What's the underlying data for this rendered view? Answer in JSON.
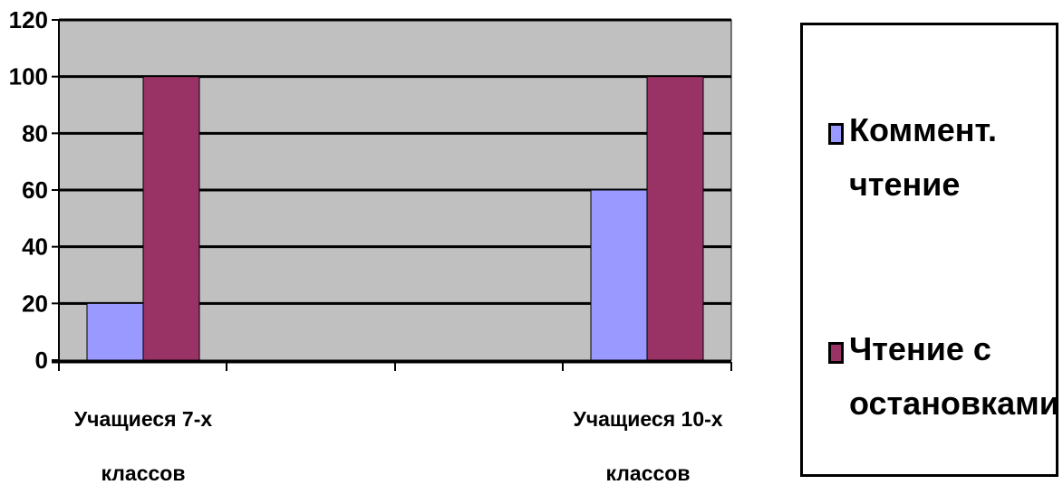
{
  "chart_data": {
    "type": "bar",
    "categories": [
      "Учащиеся 7-х\nклассов",
      "Учащиеся 10-х\nклассов"
    ],
    "series": [
      {
        "name": "Коммент.\nчтение",
        "values": [
          20,
          60
        ],
        "color": "#9999ff"
      },
      {
        "name": "Чтение с\nостановками",
        "values": [
          100,
          100
        ],
        "color": "#993366"
      }
    ],
    "ylim": [
      0,
      120
    ],
    "yticks": [
      0,
      20,
      40,
      60,
      80,
      100,
      120
    ],
    "plot_background": "#c0c0c0",
    "grid": true,
    "legend": "right",
    "title": "",
    "xlabel": "",
    "ylabel": ""
  }
}
